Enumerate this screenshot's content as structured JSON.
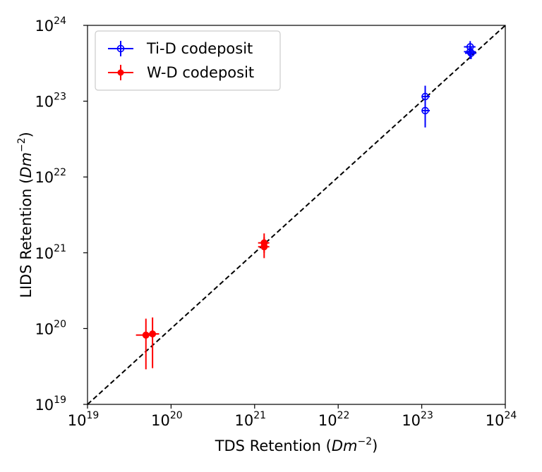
{
  "chart_data": {
    "type": "scatter",
    "title": "",
    "xlabel": "TDS Retention (Dm^-2)",
    "ylabel": "LIDS Retention (Dm^-2)",
    "xlabel_parts": {
      "main": "TDS Retention (",
      "var": "Dm",
      "sup": "−2",
      "close": ")"
    },
    "ylabel_parts": {
      "main": "LIDS Retention (",
      "var": "Dm",
      "sup": "−2",
      "close": ")"
    },
    "xscale": "log",
    "yscale": "log",
    "xlim": [
      1e+19,
      1e+24
    ],
    "ylim": [
      1e+19,
      1e+24
    ],
    "ticks": [
      {
        "value": 1e+19,
        "base": "10",
        "exp": "19"
      },
      {
        "value": 1e+20,
        "base": "10",
        "exp": "20"
      },
      {
        "value": 1e+21,
        "base": "10",
        "exp": "21"
      },
      {
        "value": 1e+22,
        "base": "10",
        "exp": "22"
      },
      {
        "value": 1e+23,
        "base": "10",
        "exp": "23"
      },
      {
        "value": 1e+24,
        "base": "10",
        "exp": "24"
      }
    ],
    "grid": false,
    "legend_position": "top-left",
    "reference_line": {
      "style": "dashed",
      "color": "#000000",
      "x": [
        1e+19,
        1e+24
      ],
      "y": [
        1e+19,
        1e+24
      ]
    },
    "series": [
      {
        "name": "Ti-D codeposit",
        "color": "#0000ff",
        "marker": "open-circle",
        "points": [
          {
            "x": 1.1e+23,
            "y": 1.15e+23,
            "xerr": [
              1e+23,
              1.25e+23
            ],
            "yerr": [
              7.5e+22,
              1.6e+23
            ]
          },
          {
            "x": 1.1e+23,
            "y": 7.5e+22,
            "xerr": [
              1e+23,
              1.25e+23
            ],
            "yerr": [
              4.5e+22,
              1.05e+23
            ]
          },
          {
            "x": 3.8e+23,
            "y": 5.2e+23,
            "xerr": [
              3.2e+23,
              4.4e+23
            ],
            "yerr": [
              4.4e+23,
              6.2e+23
            ]
          },
          {
            "x": 3.8e+23,
            "y": 4.5e+23,
            "xerr": [
              3.2e+23,
              4.4e+23
            ],
            "yerr": [
              3.6e+23,
              5.4e+23
            ]
          },
          {
            "x": 3.9e+23,
            "y": 4.3e+23,
            "xerr": [
              3.3e+23,
              4.5e+23
            ],
            "yerr": [
              3.6e+23,
              5.1e+23
            ]
          }
        ]
      },
      {
        "name": "W-D codeposit",
        "color": "#ff0000",
        "marker": "filled-circle",
        "points": [
          {
            "x": 5e+19,
            "y": 8.2e+19,
            "xerr": [
              3.8e+19,
              6.2e+19
            ],
            "yerr": [
              2.9e+19,
              1.35e+20
            ]
          },
          {
            "x": 6e+19,
            "y": 8.5e+19,
            "xerr": [
              4.8e+19,
              7.2e+19
            ],
            "yerr": [
              3e+19,
              1.4e+20
            ]
          },
          {
            "x": 1.3e+21,
            "y": 1.35e+21,
            "xerr": [
              1.1e+21,
              1.5e+21
            ],
            "yerr": [
              1e+21,
              1.8e+21
            ]
          },
          {
            "x": 1.3e+21,
            "y": 1.2e+21,
            "xerr": [
              1.1e+21,
              1.5e+21
            ],
            "yerr": [
              8.5e+20,
              1.6e+21
            ]
          }
        ]
      }
    ]
  }
}
